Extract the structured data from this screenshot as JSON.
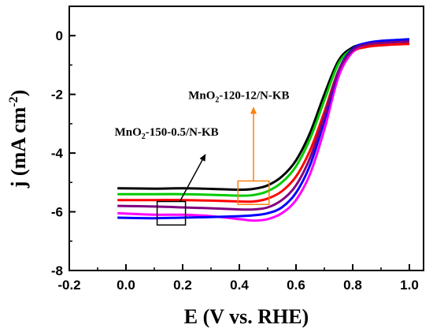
{
  "chart_data": {
    "type": "line",
    "xlabel": "E (V vs. RHE)",
    "ylabel": "j (mA cm^-2)",
    "xlim": [
      -0.2,
      1.05
    ],
    "ylim": [
      -8,
      1.0
    ],
    "x_ticks": [
      -0.2,
      0.0,
      0.2,
      0.4,
      0.6,
      0.8,
      1.0
    ],
    "x_tick_labels": [
      "-0.2",
      "0.0",
      "0.2",
      "0.4",
      "0.6",
      "0.8",
      "1.0"
    ],
    "y_ticks": [
      -8,
      -6,
      -4,
      -2,
      0
    ],
    "y_tick_labels": [
      "-8",
      "-6",
      "-4",
      "-2",
      "0"
    ],
    "grid": false,
    "series": [
      {
        "color": "#000000",
        "x": [
          -0.03,
          0.1,
          0.2,
          0.3,
          0.4,
          0.45,
          0.5,
          0.55,
          0.6,
          0.65,
          0.7,
          0.75,
          0.8,
          0.85,
          0.9,
          0.95,
          1.0
        ],
        "y": [
          -5.2,
          -5.21,
          -5.2,
          -5.22,
          -5.25,
          -5.22,
          -5.1,
          -4.8,
          -4.25,
          -3.3,
          -2.0,
          -0.85,
          -0.4,
          -0.28,
          -0.23,
          -0.21,
          -0.2
        ]
      },
      {
        "color": "#00cc00",
        "x": [
          -0.03,
          0.1,
          0.2,
          0.3,
          0.4,
          0.45,
          0.5,
          0.55,
          0.6,
          0.65,
          0.7,
          0.75,
          0.8,
          0.85,
          0.9,
          0.95,
          1.0
        ],
        "y": [
          -5.4,
          -5.4,
          -5.4,
          -5.42,
          -5.45,
          -5.43,
          -5.3,
          -5.0,
          -4.45,
          -3.5,
          -2.2,
          -0.95,
          -0.45,
          -0.3,
          -0.25,
          -0.22,
          -0.2
        ]
      },
      {
        "color": "#ff0000",
        "x": [
          -0.03,
          0.1,
          0.2,
          0.3,
          0.4,
          0.45,
          0.5,
          0.55,
          0.6,
          0.65,
          0.7,
          0.75,
          0.8,
          0.85,
          0.9,
          0.95,
          1.0
        ],
        "y": [
          -5.6,
          -5.6,
          -5.6,
          -5.62,
          -5.65,
          -5.65,
          -5.55,
          -5.3,
          -4.8,
          -3.9,
          -2.6,
          -1.2,
          -0.55,
          -0.38,
          -0.33,
          -0.3,
          -0.28
        ]
      },
      {
        "color": "#ff00ff",
        "x": [
          -0.03,
          0.1,
          0.2,
          0.3,
          0.4,
          0.45,
          0.5,
          0.55,
          0.6,
          0.65,
          0.7,
          0.75,
          0.8,
          0.85,
          0.9,
          0.95,
          1.0
        ],
        "y": [
          -6.05,
          -6.1,
          -6.1,
          -6.15,
          -6.25,
          -6.3,
          -6.25,
          -6.05,
          -5.6,
          -4.7,
          -3.2,
          -1.4,
          -0.55,
          -0.3,
          -0.22,
          -0.18,
          -0.16
        ]
      },
      {
        "color": "#0000ff",
        "x": [
          -0.03,
          0.1,
          0.2,
          0.3,
          0.4,
          0.45,
          0.5,
          0.55,
          0.6,
          0.65,
          0.7,
          0.75,
          0.8,
          0.85,
          0.9,
          0.95,
          1.0
        ],
        "y": [
          -6.2,
          -6.22,
          -6.2,
          -6.18,
          -6.15,
          -6.12,
          -6.05,
          -5.85,
          -5.35,
          -4.4,
          -2.9,
          -1.2,
          -0.45,
          -0.25,
          -0.18,
          -0.15,
          -0.12
        ]
      },
      {
        "color": "#800080",
        "x": [
          -0.03,
          0.1,
          0.2,
          0.3,
          0.4,
          0.45,
          0.5,
          0.55,
          0.6,
          0.65,
          0.7,
          0.75,
          0.8,
          0.85,
          0.9,
          0.95,
          1.0
        ],
        "y": [
          -5.8,
          -5.82,
          -5.85,
          -5.88,
          -5.92,
          -5.92,
          -5.85,
          -5.6,
          -5.1,
          -4.15,
          -2.75,
          -1.2,
          -0.5,
          -0.3,
          -0.25,
          -0.22,
          -0.2
        ]
      }
    ],
    "annotations": [
      {
        "label_main": "MnO",
        "label_sub": "2",
        "label_rest": "-150-0.5/N-KB",
        "box": {
          "x0": 0.11,
          "x1": 0.21,
          "y0": -6.45,
          "y1": -5.65
        },
        "box_color": "#000000",
        "arrow_from": {
          "x": 0.19,
          "y": -5.65
        },
        "arrow_to": {
          "x": 0.28,
          "y": -4.05
        },
        "text_pos": {
          "x": -0.04,
          "y": -3.4
        }
      },
      {
        "label_main": "MnO",
        "label_sub": "2",
        "label_rest": "-120-12/N-KB",
        "box": {
          "x0": 0.395,
          "x1": 0.505,
          "y0": -5.75,
          "y1": -4.95
        },
        "box_color": "#ff7f0e",
        "arrow_from": {
          "x": 0.45,
          "y": -4.95
        },
        "arrow_to": {
          "x": 0.45,
          "y": -2.45
        },
        "text_pos": {
          "x": 0.22,
          "y": -2.15
        }
      }
    ]
  }
}
